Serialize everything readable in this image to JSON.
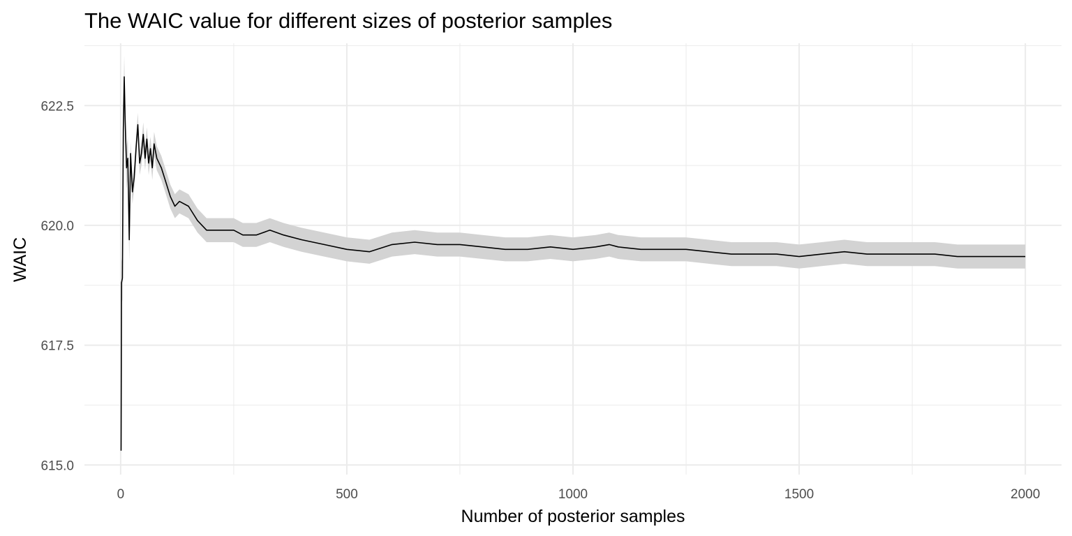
{
  "chart_data": {
    "type": "line",
    "title": "The WAIC value for different sizes of posterior samples",
    "xlabel": "Number of posterior samples",
    "ylabel": "WAIC",
    "xlim": [
      -80,
      2080
    ],
    "ylim": [
      614.8,
      623.8
    ],
    "x_ticks": [
      0,
      500,
      1000,
      1500,
      2000
    ],
    "x_tick_labels": [
      "0",
      "500",
      "1000",
      "1500",
      "2000"
    ],
    "y_ticks": [
      615.0,
      617.5,
      620.0,
      622.5
    ],
    "y_tick_labels": [
      "615.0",
      "617.5",
      "620.0",
      "622.5"
    ],
    "grid": true,
    "legend": "none",
    "colors": {
      "line": "#000000",
      "band": "#d3d3d3",
      "grid": "#ebebeb"
    },
    "series": [
      {
        "values": [
          [
            1,
            615.3
          ],
          [
            2,
            618.8
          ],
          [
            4,
            618.9
          ],
          [
            6,
            622.0
          ],
          [
            8,
            623.1
          ],
          [
            10,
            622.2
          ],
          [
            13,
            621.2
          ],
          [
            16,
            621.4
          ],
          [
            19,
            619.7
          ],
          [
            22,
            621.5
          ],
          [
            26,
            620.7
          ],
          [
            30,
            621.0
          ],
          [
            34,
            621.6
          ],
          [
            38,
            622.1
          ],
          [
            42,
            621.3
          ],
          [
            46,
            621.5
          ],
          [
            50,
            621.9
          ],
          [
            54,
            621.4
          ],
          [
            58,
            621.8
          ],
          [
            62,
            621.3
          ],
          [
            66,
            621.6
          ],
          [
            70,
            621.2
          ],
          [
            74,
            621.7
          ],
          [
            80,
            621.4
          ],
          [
            90,
            621.2
          ],
          [
            100,
            620.9
          ],
          [
            110,
            620.6
          ],
          [
            120,
            620.4
          ],
          [
            130,
            620.5
          ],
          [
            150,
            620.4
          ],
          [
            170,
            620.1
          ],
          [
            190,
            619.9
          ],
          [
            210,
            619.9
          ],
          [
            230,
            619.9
          ],
          [
            250,
            619.9
          ],
          [
            270,
            619.8
          ],
          [
            300,
            619.8
          ],
          [
            330,
            619.9
          ],
          [
            360,
            619.8
          ],
          [
            400,
            619.7
          ],
          [
            450,
            619.6
          ],
          [
            500,
            619.5
          ],
          [
            550,
            619.45
          ],
          [
            600,
            619.6
          ],
          [
            650,
            619.65
          ],
          [
            700,
            619.6
          ],
          [
            750,
            619.6
          ],
          [
            800,
            619.55
          ],
          [
            850,
            619.5
          ],
          [
            900,
            619.5
          ],
          [
            950,
            619.55
          ],
          [
            1000,
            619.5
          ],
          [
            1050,
            619.55
          ],
          [
            1080,
            619.6
          ],
          [
            1100,
            619.55
          ],
          [
            1150,
            619.5
          ],
          [
            1200,
            619.5
          ],
          [
            1250,
            619.5
          ],
          [
            1300,
            619.45
          ],
          [
            1350,
            619.4
          ],
          [
            1400,
            619.4
          ],
          [
            1450,
            619.4
          ],
          [
            1500,
            619.35
          ],
          [
            1550,
            619.4
          ],
          [
            1600,
            619.45
          ],
          [
            1650,
            619.4
          ],
          [
            1700,
            619.4
          ],
          [
            1750,
            619.4
          ],
          [
            1800,
            619.4
          ],
          [
            1850,
            619.35
          ],
          [
            1900,
            619.35
          ],
          [
            1950,
            619.35
          ],
          [
            2000,
            619.35
          ]
        ],
        "band_halfwidth": 0.25
      }
    ]
  }
}
